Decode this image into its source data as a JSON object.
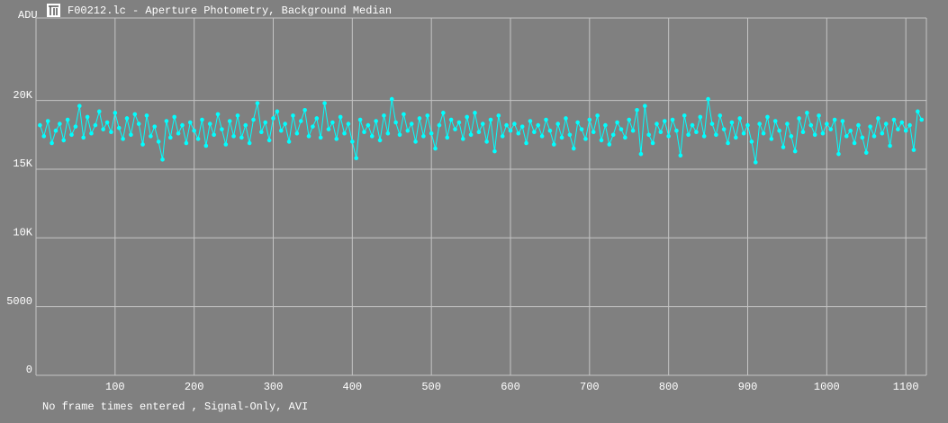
{
  "chart_data": {
    "type": "line",
    "title": "F00212.lc - Aperture Photometry, Background Median",
    "y_label": "ADU",
    "status": "No frame times entered , Signal-Only, AVI",
    "xlim": [
      0,
      1126
    ],
    "ylim": [
      0,
      26000
    ],
    "xticks": [
      100,
      200,
      300,
      400,
      500,
      600,
      700,
      800,
      900,
      1000,
      1100
    ],
    "yticks": [
      0,
      5000,
      {
        "value": 10000,
        "label": "10K"
      },
      {
        "value": 15000,
        "label": "15K"
      },
      {
        "value": 20000,
        "label": "20K"
      }
    ],
    "grid": true,
    "x": [
      5,
      10,
      15,
      20,
      25,
      30,
      35,
      40,
      45,
      50,
      55,
      60,
      65,
      70,
      75,
      80,
      85,
      90,
      95,
      100,
      105,
      110,
      115,
      120,
      125,
      130,
      135,
      140,
      145,
      150,
      155,
      160,
      165,
      170,
      175,
      180,
      185,
      190,
      195,
      200,
      205,
      210,
      215,
      220,
      225,
      230,
      235,
      240,
      245,
      250,
      255,
      260,
      265,
      270,
      275,
      280,
      285,
      290,
      295,
      300,
      305,
      310,
      315,
      320,
      325,
      330,
      335,
      340,
      345,
      350,
      355,
      360,
      365,
      370,
      375,
      380,
      385,
      390,
      395,
      400,
      405,
      410,
      415,
      420,
      425,
      430,
      435,
      440,
      445,
      450,
      455,
      460,
      465,
      470,
      475,
      480,
      485,
      490,
      495,
      500,
      505,
      510,
      515,
      520,
      525,
      530,
      535,
      540,
      545,
      550,
      555,
      560,
      565,
      570,
      575,
      580,
      585,
      590,
      595,
      600,
      605,
      610,
      615,
      620,
      625,
      630,
      635,
      640,
      645,
      650,
      655,
      660,
      665,
      670,
      675,
      680,
      685,
      690,
      695,
      700,
      705,
      710,
      715,
      720,
      725,
      730,
      735,
      740,
      745,
      750,
      755,
      760,
      765,
      770,
      775,
      780,
      785,
      790,
      795,
      800,
      805,
      810,
      815,
      820,
      825,
      830,
      835,
      840,
      845,
      850,
      855,
      860,
      865,
      870,
      875,
      880,
      885,
      890,
      895,
      900,
      905,
      910,
      915,
      920,
      925,
      930,
      935,
      940,
      945,
      950,
      955,
      960,
      965,
      970,
      975,
      980,
      985,
      990,
      995,
      1000,
      1005,
      1010,
      1015,
      1020,
      1025,
      1030,
      1035,
      1040,
      1045,
      1050,
      1055,
      1060,
      1065,
      1070,
      1075,
      1080,
      1085,
      1090,
      1095,
      1100,
      1105,
      1110,
      1115,
      1120
    ],
    "series": [
      {
        "color": "#00ffff",
        "values": [
          18200,
          17400,
          18500,
          16900,
          17800,
          18300,
          17100,
          18600,
          17500,
          18100,
          19600,
          17300,
          18800,
          17600,
          18200,
          19200,
          17900,
          18400,
          17700,
          19100,
          18000,
          17200,
          18700,
          17500,
          19000,
          18300,
          16800,
          18900,
          17400,
          18100,
          17000,
          15700,
          18500,
          17300,
          18800,
          17600,
          18200,
          16900,
          18400,
          17800,
          17200,
          18600,
          16700,
          18300,
          17500,
          19000,
          17900,
          16800,
          18500,
          17400,
          18900,
          17300,
          18200,
          16900,
          18600,
          19800,
          17700,
          18400,
          17100,
          18700,
          19200,
          17800,
          18300,
          17000,
          18900,
          17600,
          18500,
          19300,
          17400,
          18100,
          18700,
          17300,
          19800,
          17900,
          18400,
          17200,
          18800,
          17600,
          18300,
          17000,
          15800,
          18600,
          17700,
          18200,
          17400,
          18500,
          17100,
          18900,
          17600,
          20100,
          18400,
          17500,
          19000,
          17800,
          18300,
          17000,
          18700,
          17400,
          18900,
          17600,
          16500,
          18200,
          19100,
          17300,
          18600,
          17900,
          18400,
          17200,
          18800,
          17500,
          19100,
          17700,
          18300,
          17000,
          18600,
          16300,
          18900,
          17400,
          18200,
          17800,
          18300,
          17600,
          18100,
          16900,
          18500,
          17700,
          18200,
          17400,
          18600,
          17800,
          16800,
          18300,
          17300,
          18700,
          17500,
          16500,
          18400,
          17900,
          17200,
          18600,
          17700,
          18900,
          17100,
          18200,
          16800,
          17500,
          18400,
          17900,
          17300,
          18600,
          17800,
          19300,
          16100,
          19600,
          17500,
          16900,
          18300,
          17700,
          18500,
          17400,
          18600,
          17800,
          16000,
          18900,
          17500,
          18200,
          17700,
          18800,
          17400,
          20100,
          18300,
          17500,
          18900,
          17900,
          16900,
          18400,
          17300,
          18700,
          17600,
          18200,
          17000,
          15500,
          18300,
          17600,
          18800,
          17200,
          18500,
          17800,
          16600,
          18300,
          17400,
          16300,
          18700,
          17700,
          19100,
          18200,
          17500,
          18900,
          17600,
          18300,
          17900,
          18600,
          16100,
          18500,
          17400,
          17800,
          16900,
          18200,
          17300,
          16200,
          18100,
          17400,
          18700,
          17600,
          18300,
          16700,
          18600,
          17900,
          18400,
          17800,
          18200,
          16400,
          19200,
          18600
        ]
      }
    ]
  }
}
